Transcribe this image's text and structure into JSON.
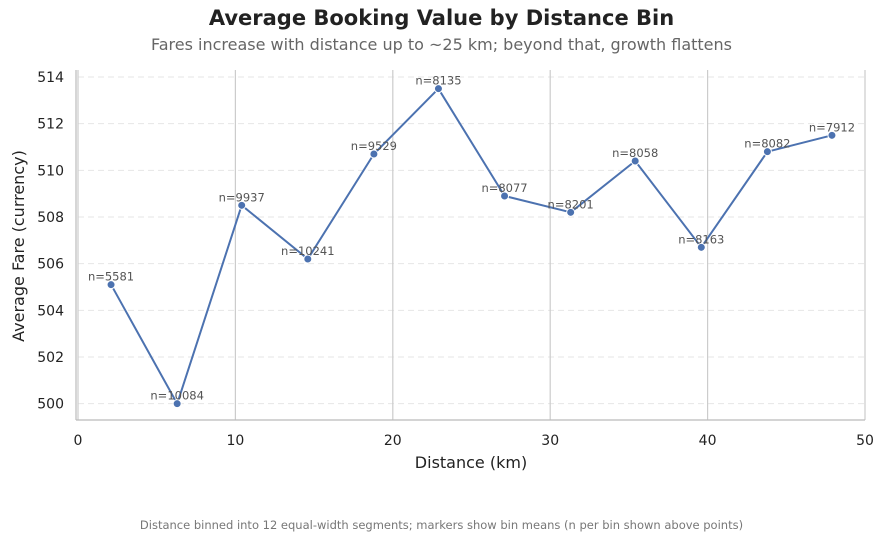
{
  "chart_data": {
    "type": "line",
    "title": "Average Booking Value by Distance Bin",
    "subtitle": "Fares increase with distance up to ~25 km; beyond that, growth flattens",
    "xlabel": "Distance (km)",
    "ylabel": "Average Fare (currency)",
    "footnote": "Distance binned into 12 equal-width segments; markers show bin means (n per bin shown above points)",
    "xlim": [
      0,
      50
    ],
    "ylim": [
      499.3,
      514.3
    ],
    "xticks": [
      0,
      10,
      20,
      30,
      40,
      50
    ],
    "yticks": [
      500,
      502,
      504,
      506,
      508,
      510,
      512,
      514
    ],
    "grid": {
      "x": "solid",
      "y": "dashed"
    },
    "color": "#4c72b0",
    "points": [
      {
        "x": 2.1,
        "y": 505.1,
        "label": "n=5581"
      },
      {
        "x": 6.3,
        "y": 500.0,
        "label": "n=10084"
      },
      {
        "x": 10.4,
        "y": 508.5,
        "label": "n=9937"
      },
      {
        "x": 14.6,
        "y": 506.2,
        "label": "n=10241"
      },
      {
        "x": 18.8,
        "y": 510.7,
        "label": "n=9529"
      },
      {
        "x": 22.9,
        "y": 513.5,
        "label": "n=8135"
      },
      {
        "x": 27.1,
        "y": 508.9,
        "label": "n=8077"
      },
      {
        "x": 31.3,
        "y": 508.2,
        "label": "n=8201"
      },
      {
        "x": 35.4,
        "y": 510.4,
        "label": "n=8058"
      },
      {
        "x": 39.6,
        "y": 506.7,
        "label": "n=8163"
      },
      {
        "x": 43.8,
        "y": 510.8,
        "label": "n=8082"
      },
      {
        "x": 47.9,
        "y": 511.5,
        "label": "n=7912"
      }
    ]
  }
}
